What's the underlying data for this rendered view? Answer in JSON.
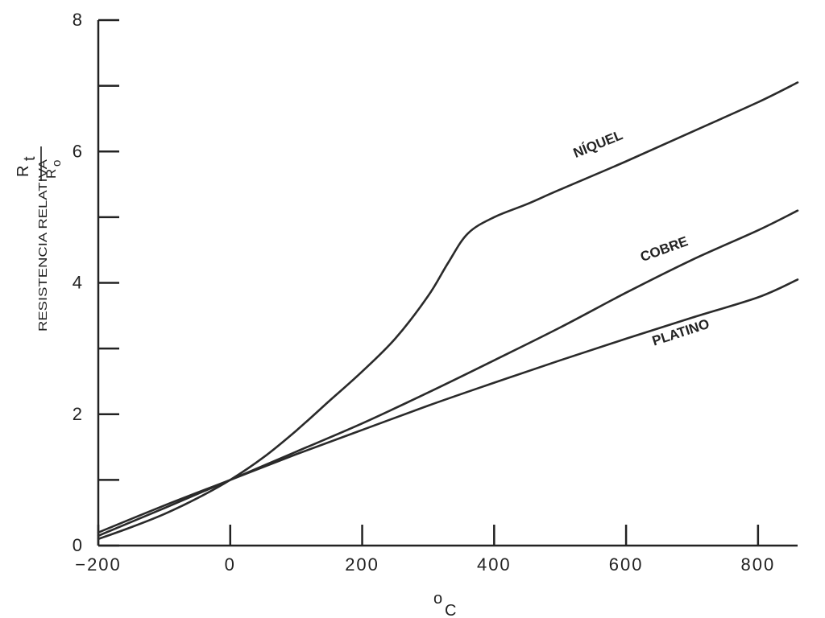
{
  "chart_data": {
    "type": "line",
    "title": "",
    "xlabel": "C",
    "xlabel_degree": "o",
    "ylabel": "RESISTENCIA RELATIVA",
    "ylabel_ratio_num_main": "R",
    "ylabel_ratio_num_sub": "t",
    "ylabel_ratio_den_main": "R",
    "ylabel_ratio_den_sub": "o",
    "xlim": [
      -200,
      860
    ],
    "ylim": [
      0,
      8
    ],
    "x_ticks": [
      -200,
      0,
      200,
      400,
      600,
      800
    ],
    "x_tick_labels": [
      "−200",
      "0",
      "200",
      "400",
      "600",
      "800"
    ],
    "y_ticks": [
      0,
      1,
      2,
      3,
      4,
      5,
      6,
      7,
      8
    ],
    "y_tick_labels": [
      "0",
      "",
      "2",
      "",
      "4",
      "",
      "6",
      "",
      "8"
    ],
    "grid": false,
    "series": [
      {
        "name": "NÍQUEL",
        "label_at": [
          560,
          6.05
        ],
        "label_angle": -22,
        "x": [
          -200,
          -150,
          -100,
          -50,
          0,
          50,
          100,
          150,
          200,
          250,
          300,
          330,
          360,
          400,
          450,
          500,
          600,
          700,
          800,
          860
        ],
        "y": [
          0.1,
          0.28,
          0.48,
          0.72,
          1.0,
          1.34,
          1.75,
          2.2,
          2.65,
          3.15,
          3.8,
          4.3,
          4.75,
          5.0,
          5.2,
          5.42,
          5.85,
          6.3,
          6.75,
          7.05
        ]
      },
      {
        "name": "COBRE",
        "label_at": [
          660,
          4.45
        ],
        "label_angle": -20,
        "x": [
          -200,
          -100,
          0,
          100,
          200,
          300,
          400,
          500,
          600,
          700,
          800,
          860
        ],
        "y": [
          0.15,
          0.57,
          1.0,
          1.43,
          1.86,
          2.33,
          2.82,
          3.32,
          3.85,
          4.35,
          4.8,
          5.1
        ]
      },
      {
        "name": "PLATINO",
        "label_at": [
          685,
          3.18
        ],
        "label_angle": -18,
        "x": [
          -200,
          -100,
          0,
          100,
          200,
          300,
          400,
          500,
          600,
          700,
          800,
          860
        ],
        "y": [
          0.2,
          0.61,
          1.0,
          1.39,
          1.76,
          2.13,
          2.48,
          2.82,
          3.15,
          3.47,
          3.78,
          4.05
        ]
      }
    ]
  }
}
